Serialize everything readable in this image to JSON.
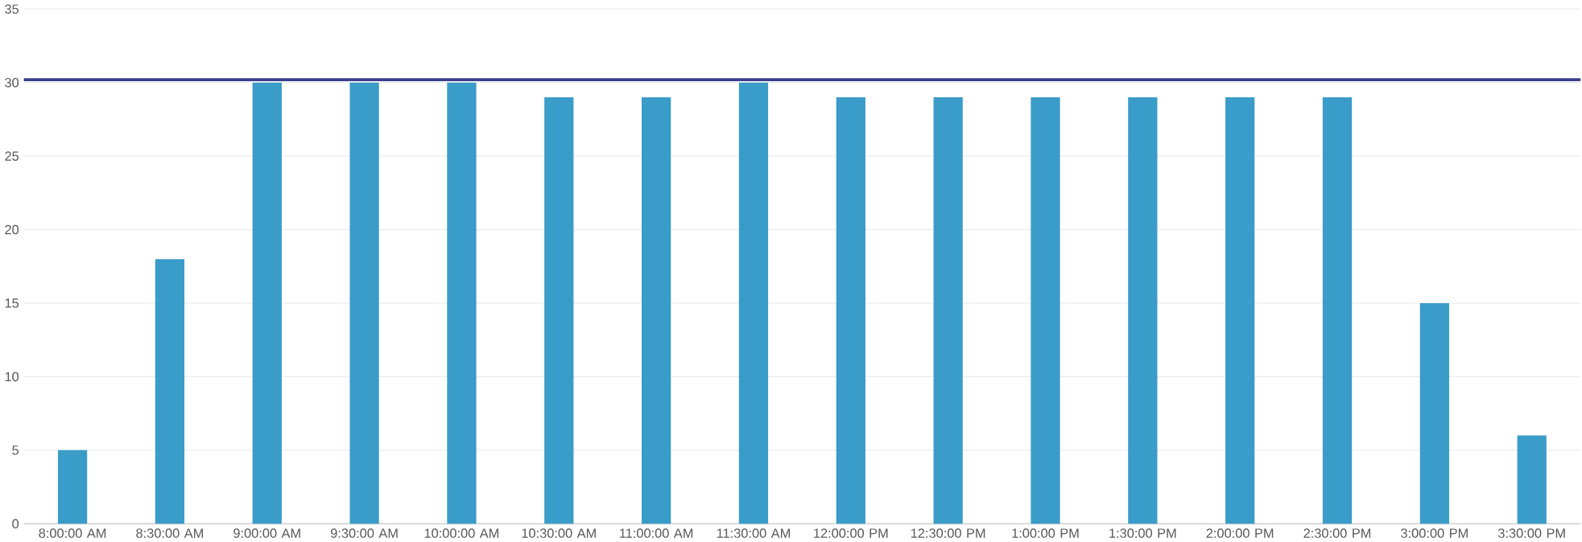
{
  "chart_data": {
    "type": "bar",
    "categories": [
      "8:00:00 AM",
      "8:30:00 AM",
      "9:00:00 AM",
      "9:30:00 AM",
      "10:00:00 AM",
      "10:30:00 AM",
      "11:00:00 AM",
      "11:30:00 AM",
      "12:00:00 PM",
      "12:30:00 PM",
      "1:00:00 PM",
      "1:30:00 PM",
      "2:00:00 PM",
      "2:30:00 PM",
      "3:00:00 PM",
      "3:30:00 PM"
    ],
    "values": [
      5,
      18,
      30,
      30,
      30,
      29,
      29,
      30,
      29,
      29,
      29,
      29,
      29,
      29,
      15,
      6
    ],
    "color": "#3a9cc8",
    "ylim": [
      0,
      35
    ],
    "yticks": [
      0,
      5,
      10,
      15,
      20,
      25,
      30,
      35
    ],
    "grid": "y",
    "ref_lines": [
      {
        "axis": "y",
        "value": 30.2,
        "color": "#3b3f8f"
      }
    ]
  }
}
